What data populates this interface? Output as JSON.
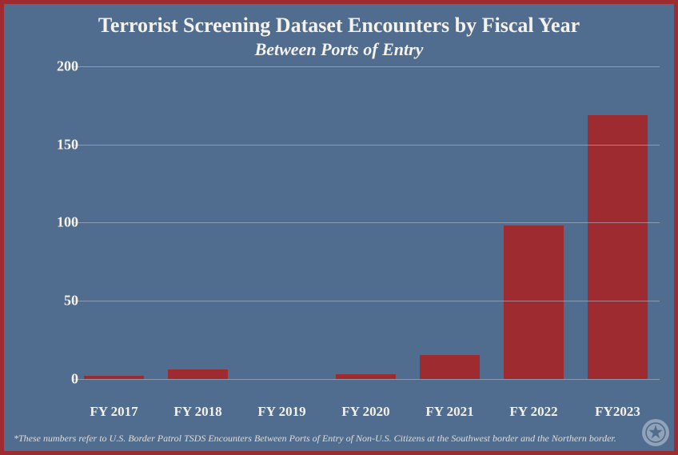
{
  "frame": {
    "border_color": "#9e2b2f",
    "background_color": "#506c8e",
    "text_color": "#f5f2ea"
  },
  "title": {
    "text": "Terrorist Screening Dataset Encounters by Fiscal Year",
    "fontsize": 26,
    "color": "#f5f2ea"
  },
  "subtitle": {
    "text": "Between Ports of Entry",
    "fontsize": 22,
    "color": "#f5f2ea"
  },
  "chart": {
    "type": "bar",
    "categories": [
      "FY 2017",
      "FY 2018",
      "FY 2019",
      "FY 2020",
      "FY 2021",
      "FY 2022",
      "FY2023"
    ],
    "values": [
      2,
      6,
      0,
      3,
      15,
      98,
      169
    ],
    "bar_color": "#9e2b2f",
    "bar_width": 0.72,
    "ylim_min": -15,
    "ylim_max": 200,
    "yticks": [
      0,
      50,
      100,
      150,
      200
    ],
    "grid_color": "#b8c4d4",
    "grid_opacity": 0.55,
    "axis_label_color": "#f5f2ea",
    "axis_label_fontsize": 17,
    "y_label_fontsize": 18
  },
  "footnote": {
    "text": "*These numbers refer to U.S. Border Patrol TSDS Encounters Between Ports of Entry of Non-U.S. Citizens at the Southwest border and the Northern border.",
    "fontsize": 12,
    "color": "#e0ddd4"
  },
  "watermark": {
    "name": "seal-icon",
    "circle_color": "#dfe6ee"
  }
}
